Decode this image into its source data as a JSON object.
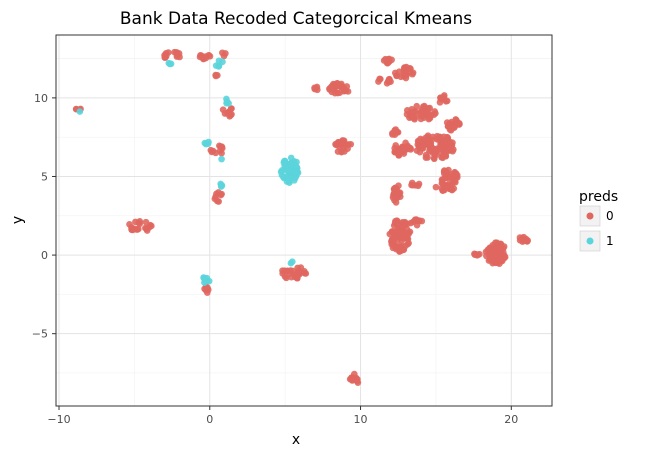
{
  "chart_data": {
    "type": "scatter",
    "title": "Bank Data Recoded Categorcical Kmeans",
    "xlabel": "x",
    "ylabel": "y",
    "xlim": [
      -10.2,
      22.7
    ],
    "ylim": [
      -9.6,
      14.0
    ],
    "x_ticks": [
      -10,
      0,
      10,
      20
    ],
    "x_tick_labels": [
      "−10",
      "0",
      "10",
      "20"
    ],
    "y_ticks": [
      -5,
      0,
      5,
      10
    ],
    "y_tick_labels": [
      "−5",
      "0",
      "5",
      "10"
    ],
    "grid": true,
    "legend": {
      "title": "preds",
      "position": "right",
      "entries": [
        "0",
        "1"
      ]
    },
    "series": [
      {
        "name": "0",
        "color": "#e0675f",
        "clusters": [
          {
            "cx": -8.7,
            "cy": 9.3,
            "rx": 0.2,
            "ry": 0.1,
            "n": 4
          },
          {
            "cx": -2.5,
            "cy": 12.7,
            "rx": 0.6,
            "ry": 0.25,
            "n": 14
          },
          {
            "cx": -0.3,
            "cy": 12.6,
            "rx": 0.4,
            "ry": 0.2,
            "n": 10
          },
          {
            "cx": 0.9,
            "cy": 12.8,
            "rx": 0.15,
            "ry": 0.15,
            "n": 3
          },
          {
            "cx": 0.5,
            "cy": 11.4,
            "rx": 0.15,
            "ry": 0.1,
            "n": 3
          },
          {
            "cx": 1.2,
            "cy": 9.1,
            "rx": 0.4,
            "ry": 0.3,
            "n": 10
          },
          {
            "cx": 0.4,
            "cy": 6.7,
            "rx": 0.5,
            "ry": 0.4,
            "n": 10
          },
          {
            "cx": 0.6,
            "cy": 3.7,
            "rx": 0.3,
            "ry": 0.3,
            "n": 8
          },
          {
            "cx": -4.6,
            "cy": 1.8,
            "rx": 0.8,
            "ry": 0.4,
            "n": 20
          },
          {
            "cx": -0.2,
            "cy": -2.2,
            "rx": 0.3,
            "ry": 0.2,
            "n": 6
          },
          {
            "cx": 5.5,
            "cy": -1.1,
            "rx": 0.9,
            "ry": 0.4,
            "n": 28
          },
          {
            "cx": 7.2,
            "cy": 10.6,
            "rx": 0.3,
            "ry": 0.1,
            "n": 5
          },
          {
            "cx": 8.6,
            "cy": 10.6,
            "rx": 0.7,
            "ry": 0.35,
            "n": 32
          },
          {
            "cx": 8.8,
            "cy": 6.9,
            "rx": 0.6,
            "ry": 0.4,
            "n": 22
          },
          {
            "cx": 9.6,
            "cy": -7.9,
            "rx": 0.3,
            "ry": 0.35,
            "n": 15
          },
          {
            "cx": 11.6,
            "cy": 11.1,
            "rx": 0.5,
            "ry": 0.2,
            "n": 10
          },
          {
            "cx": 11.8,
            "cy": 12.4,
            "rx": 0.4,
            "ry": 0.2,
            "n": 10
          },
          {
            "cx": 12.9,
            "cy": 11.6,
            "rx": 0.6,
            "ry": 0.4,
            "n": 24
          },
          {
            "cx": 14.0,
            "cy": 9.0,
            "rx": 1.0,
            "ry": 0.5,
            "n": 40
          },
          {
            "cx": 15.5,
            "cy": 9.9,
            "rx": 0.3,
            "ry": 0.3,
            "n": 10
          },
          {
            "cx": 16.1,
            "cy": 8.3,
            "rx": 0.5,
            "ry": 0.4,
            "n": 20
          },
          {
            "cx": 12.3,
            "cy": 7.8,
            "rx": 0.3,
            "ry": 0.2,
            "n": 8
          },
          {
            "cx": 12.8,
            "cy": 6.7,
            "rx": 0.6,
            "ry": 0.5,
            "n": 30
          },
          {
            "cx": 14.9,
            "cy": 6.9,
            "rx": 1.3,
            "ry": 0.8,
            "n": 100
          },
          {
            "cx": 15.9,
            "cy": 5.0,
            "rx": 0.6,
            "ry": 0.5,
            "n": 30
          },
          {
            "cx": 15.6,
            "cy": 4.3,
            "rx": 0.7,
            "ry": 0.3,
            "n": 22
          },
          {
            "cx": 13.6,
            "cy": 4.5,
            "rx": 0.3,
            "ry": 0.15,
            "n": 6
          },
          {
            "cx": 12.4,
            "cy": 3.9,
            "rx": 0.3,
            "ry": 0.6,
            "n": 22
          },
          {
            "cx": 12.6,
            "cy": 1.3,
            "rx": 0.7,
            "ry": 1.1,
            "n": 75
          },
          {
            "cx": 13.7,
            "cy": 2.1,
            "rx": 0.4,
            "ry": 0.3,
            "n": 12
          },
          {
            "cx": 17.9,
            "cy": 0.05,
            "rx": 0.4,
            "ry": 0.1,
            "n": 6
          },
          {
            "cx": 19.0,
            "cy": 0.1,
            "rx": 0.7,
            "ry": 0.7,
            "n": 60
          },
          {
            "cx": 20.8,
            "cy": 1.0,
            "rx": 0.4,
            "ry": 0.2,
            "n": 12
          }
        ]
      },
      {
        "name": "1",
        "color": "#5bd4dc",
        "clusters": [
          {
            "cx": -8.6,
            "cy": 9.15,
            "rx": 0.1,
            "ry": 0.05,
            "n": 1
          },
          {
            "cx": -2.7,
            "cy": 12.2,
            "rx": 0.15,
            "ry": 0.1,
            "n": 3
          },
          {
            "cx": 0.6,
            "cy": 12.2,
            "rx": 0.3,
            "ry": 0.2,
            "n": 5
          },
          {
            "cx": 1.2,
            "cy": 9.8,
            "rx": 0.15,
            "ry": 0.2,
            "n": 5
          },
          {
            "cx": -0.2,
            "cy": 7.2,
            "rx": 0.15,
            "ry": 0.2,
            "n": 4
          },
          {
            "cx": 0.8,
            "cy": 6.1,
            "rx": 0.1,
            "ry": 0.05,
            "n": 1
          },
          {
            "cx": 0.8,
            "cy": 4.5,
            "rx": 0.1,
            "ry": 0.2,
            "n": 4
          },
          {
            "cx": 5.3,
            "cy": 5.4,
            "rx": 0.6,
            "ry": 0.8,
            "n": 55
          },
          {
            "cx": -0.3,
            "cy": -1.6,
            "rx": 0.3,
            "ry": 0.2,
            "n": 10
          },
          {
            "cx": 5.5,
            "cy": -0.5,
            "rx": 0.15,
            "ry": 0.1,
            "n": 2
          }
        ]
      }
    ]
  }
}
